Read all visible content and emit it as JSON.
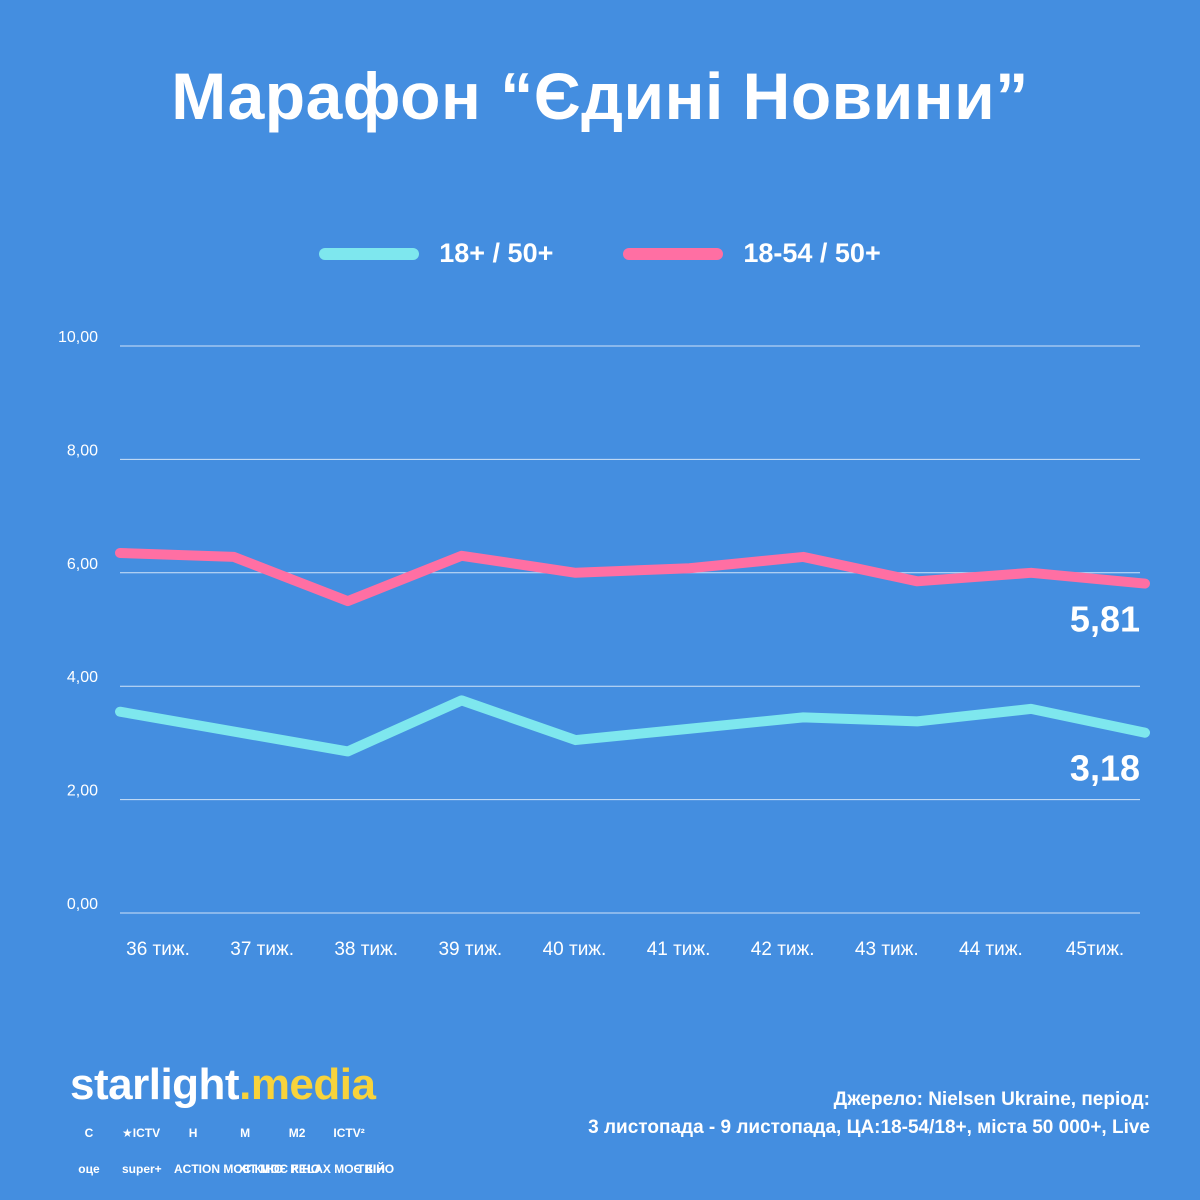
{
  "title": "Марафон “Єдині Новини”",
  "colors": {
    "background": "#448ee0",
    "series_18plus": "#7ee7ee",
    "series_18_54": "#ff6fa3",
    "brand_accent": "#f8d33b"
  },
  "chart_data": {
    "type": "line",
    "categories": [
      "36 тиж.",
      "37 тиж.",
      "38 тиж.",
      "39 тиж.",
      "40 тиж.",
      "41 тиж.",
      "42 тиж.",
      "43 тиж.",
      "44 тиж.",
      "45тиж."
    ],
    "series": [
      {
        "name": "18+ / 50+",
        "color": "#7ee7ee",
        "values": [
          3.55,
          3.2,
          2.85,
          3.75,
          3.05,
          3.25,
          3.45,
          3.38,
          3.6,
          3.18
        ],
        "end_label": "3,18"
      },
      {
        "name": "18-54 / 50+",
        "color": "#ff6fa3",
        "values": [
          6.35,
          6.28,
          5.5,
          6.3,
          6.0,
          6.08,
          6.28,
          5.85,
          6.0,
          5.81
        ],
        "end_label": "5,81"
      }
    ],
    "yticks": [
      "0,00",
      "2,00",
      "4,00",
      "6,00",
      "8,00",
      "10,00"
    ],
    "ylim": [
      0,
      10
    ],
    "grid": true,
    "legend_position": "top-center"
  },
  "footer": {
    "brand_main": "starlight",
    "brand_dot": ".",
    "brand_accent": "media",
    "channels_row1": [
      "С",
      "★ICTV",
      "Н",
      "М",
      "М2",
      "ICTV²"
    ],
    "channels_row2": [
      "оце",
      "super+",
      "ACTION МОЄ КІНО",
      "ХІТ МОЄ КІНО",
      "RELAX МОЄ КІНО",
      "ТВІЙ"
    ],
    "source_line1": "Джерело: Nielsen Ukraine, період:",
    "source_line2": "3 листопада - 9 листопада, ЦА:18-54/18+, міста 50 000+, Live"
  }
}
